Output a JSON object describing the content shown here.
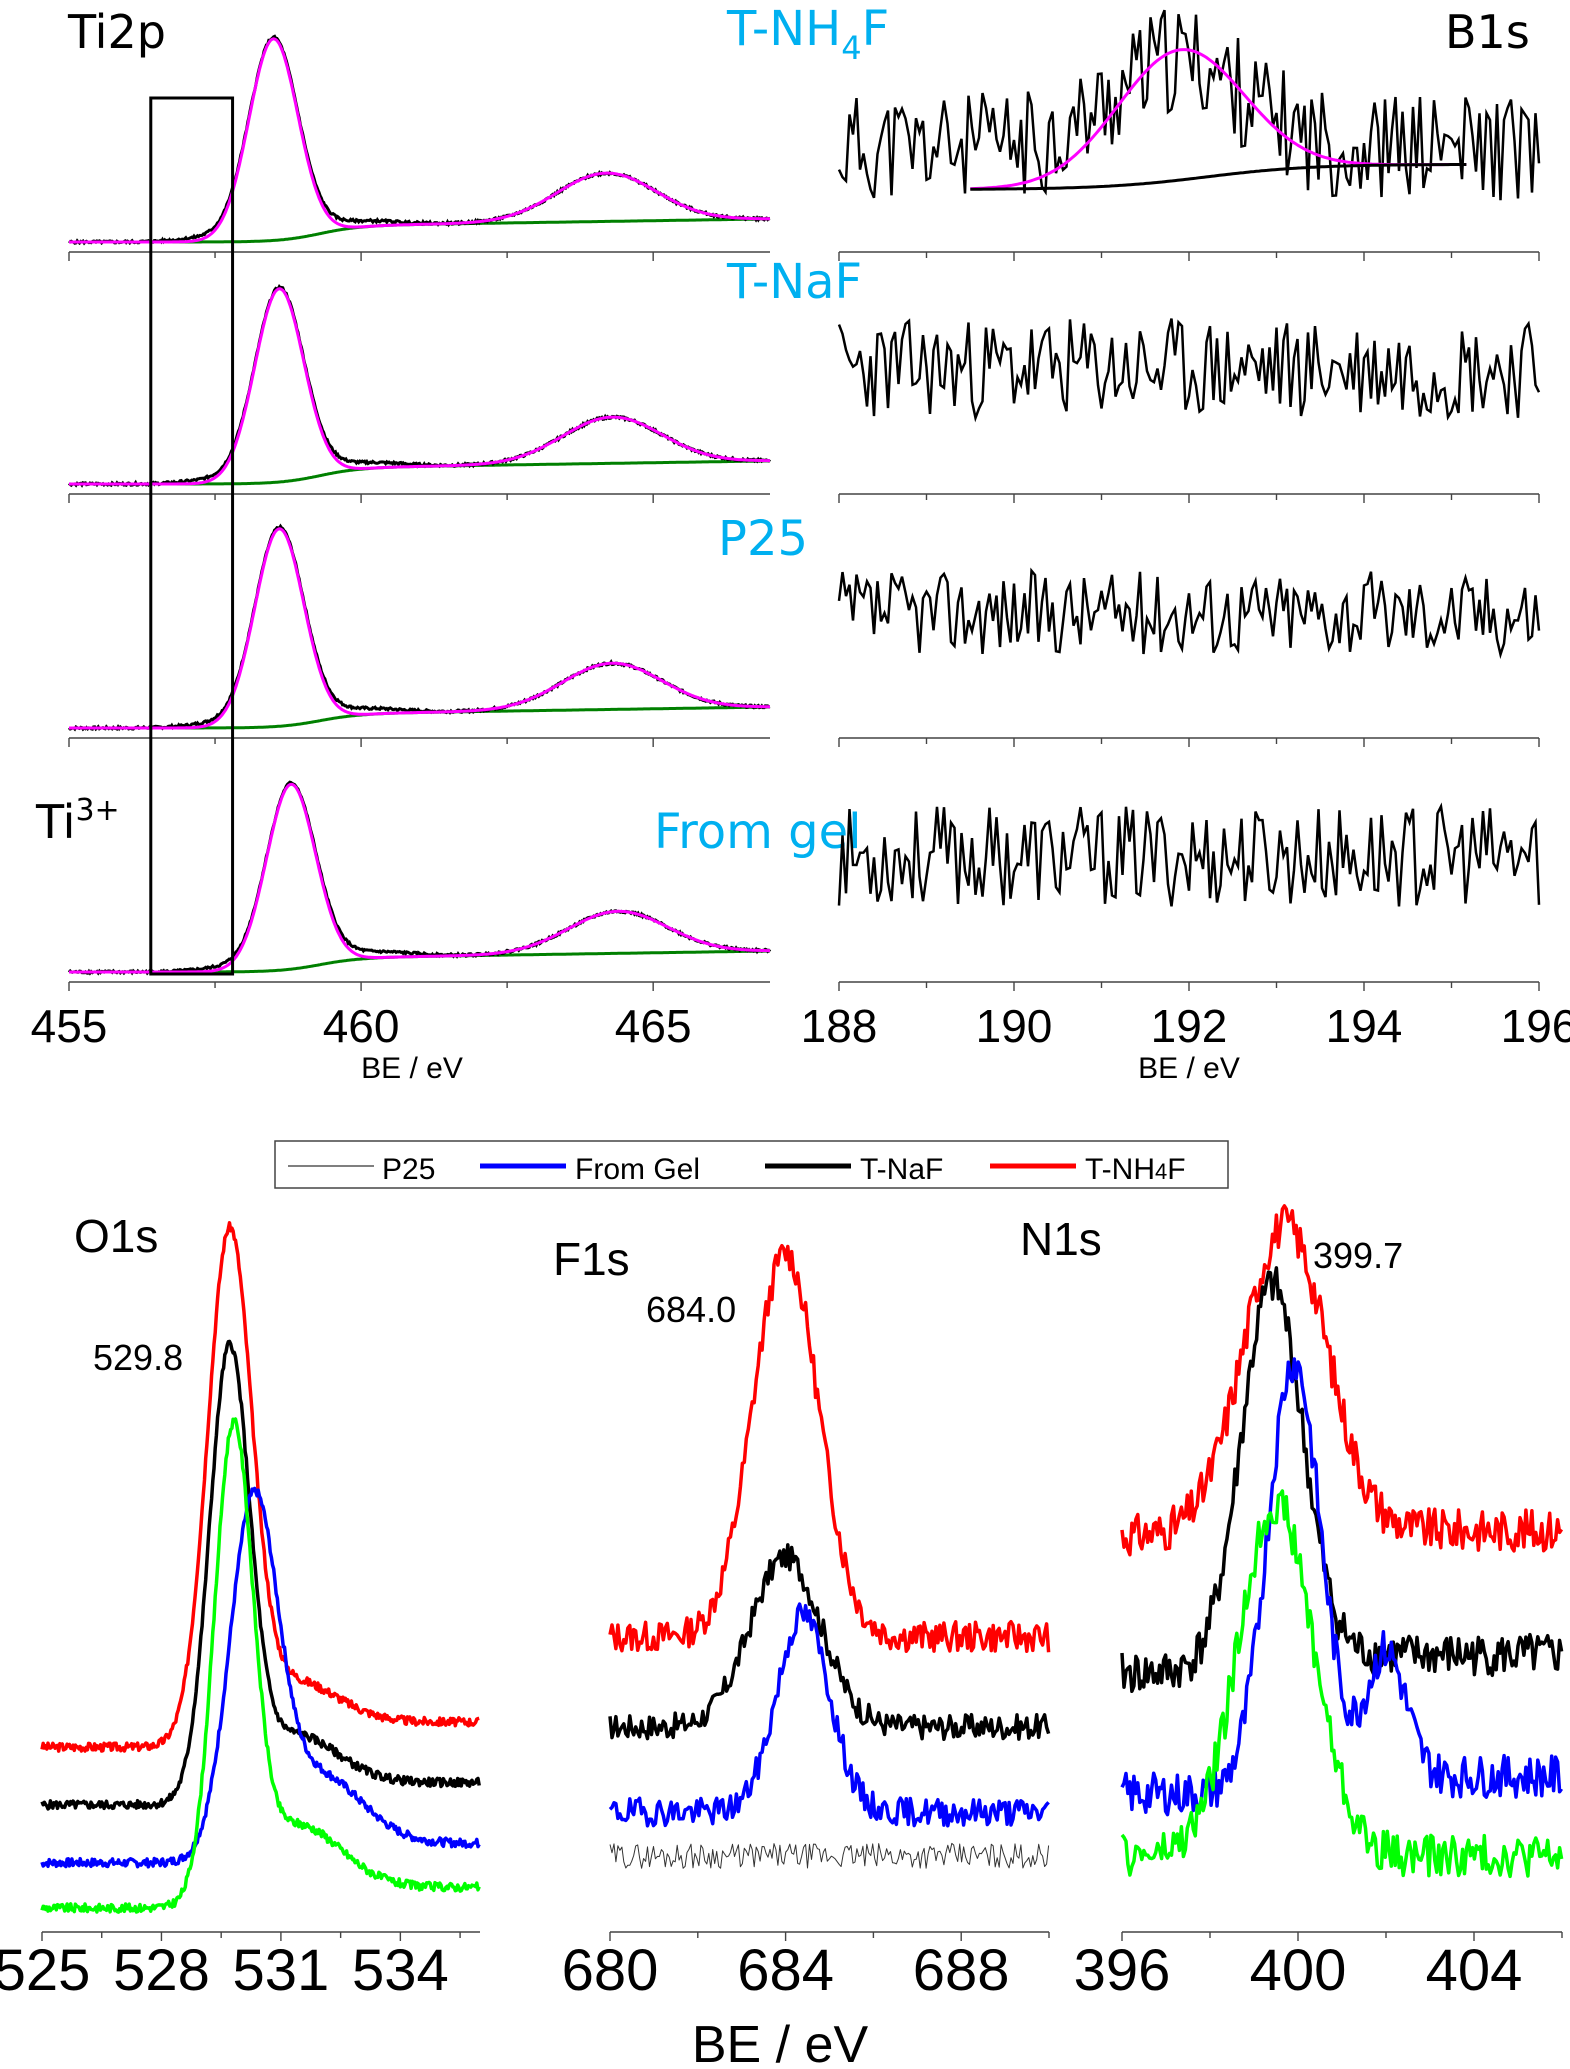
{
  "figure": {
    "label_color": "#00b0f0",
    "fit_color": "#ff00ff",
    "background_color": "#008000",
    "box_color": "#000000"
  },
  "chart_data": [
    {
      "id": "ti2p",
      "type": "line",
      "title": "Ti2p",
      "xlabel": "BE / eV",
      "xlim": [
        455,
        467
      ],
      "xticks": [
        455,
        460,
        465
      ],
      "xminor": 2.5,
      "annotation": {
        "text": "Ti",
        "sup": "3+",
        "region_eV": [
          456.4,
          457.8
        ]
      },
      "panels": [
        {
          "sample": "T-NH",
          "sample_sub": "4",
          "sample_suffix": "F",
          "bg": [
            0.0,
            0.08,
            0.11
          ],
          "p1": {
            "center": 458.5,
            "height": 0.96,
            "sigma": 0.42
          },
          "p2": {
            "center": 464.2,
            "height": 0.23,
            "sigma": 0.85
          }
        },
        {
          "sample": "T-NaF",
          "sample_sub": "",
          "sample_suffix": "",
          "bg": [
            0.0,
            0.08,
            0.11
          ],
          "p1": {
            "center": 458.6,
            "height": 0.92,
            "sigma": 0.42
          },
          "p2": {
            "center": 464.3,
            "height": 0.22,
            "sigma": 0.85
          }
        },
        {
          "sample": "P25",
          "sample_sub": "",
          "sample_suffix": "",
          "bg": [
            0.0,
            0.07,
            0.1
          ],
          "p1": {
            "center": 458.6,
            "height": 0.94,
            "sigma": 0.42
          },
          "p2": {
            "center": 464.3,
            "height": 0.22,
            "sigma": 0.85
          }
        },
        {
          "sample": "From gel",
          "sample_sub": "",
          "sample_suffix": "",
          "bg": [
            0.0,
            0.07,
            0.1
          ],
          "p1": {
            "center": 458.8,
            "height": 0.88,
            "sigma": 0.42
          },
          "p2": {
            "center": 464.4,
            "height": 0.2,
            "sigma": 0.85
          }
        }
      ]
    },
    {
      "id": "b1s",
      "type": "line",
      "title": "B1s",
      "xlabel": "BE / eV",
      "xlim": [
        188,
        196
      ],
      "xticks": [
        188,
        190,
        192,
        194,
        196
      ],
      "xminor": 1,
      "panels": [
        {
          "sample": "T-NH4F",
          "level": 0.45,
          "noise": 0.26,
          "seed": 11,
          "fit": {
            "center": 191.9,
            "height": 0.42,
            "sigma": 0.72,
            "bg_from": 189.5,
            "bg_to": 195.2,
            "bg_left": 0.25,
            "bg_right": 0.37
          }
        },
        {
          "sample": "T-NaF",
          "level": 0.55,
          "noise": 0.24,
          "seed": 23
        },
        {
          "sample": "P25",
          "level": 0.55,
          "noise": 0.2,
          "seed": 37
        },
        {
          "sample": "From gel",
          "level": 0.55,
          "noise": 0.24,
          "seed": 53
        }
      ]
    },
    {
      "id": "o1s",
      "type": "line",
      "title": "O1s",
      "xlim": [
        525,
        536
      ],
      "xticks": [
        525,
        528,
        531,
        534
      ],
      "xminor": 1.5,
      "annotation": "529.8",
      "series": [
        {
          "name": "T-NH4F",
          "color": "#ff0000",
          "base_left": 0.251,
          "base_right": 0.287,
          "center": 529.7,
          "peak": 0.958,
          "sigma": 0.55,
          "tail": 0.06,
          "noise": 0.006,
          "seed": 3
        },
        {
          "name": "T-NaF",
          "color": "#000000",
          "base_left": 0.168,
          "base_right": 0.2,
          "center": 529.7,
          "peak": 0.789,
          "sigma": 0.5,
          "tail": 0.07,
          "noise": 0.006,
          "seed": 5
        },
        {
          "name": "From Gel",
          "color": "#0000ff",
          "base_left": 0.085,
          "base_right": 0.113,
          "center": 530.3,
          "peak": 0.568,
          "sigma": 0.6,
          "tail": 0.1,
          "noise": 0.006,
          "seed": 7
        },
        {
          "name": "P25",
          "color": "#00ff00",
          "base_left": 0.02,
          "base_right": 0.05,
          "center": 529.8,
          "peak": 0.671,
          "sigma": 0.48,
          "tail": 0.09,
          "noise": 0.006,
          "seed": 9
        }
      ]
    },
    {
      "id": "f1s",
      "type": "line",
      "title": "F1s",
      "xlim": [
        680,
        690
      ],
      "xticks": [
        680,
        684,
        688
      ],
      "xminor": 2,
      "annotation": "684.0",
      "series": [
        {
          "name": "T-NH4F",
          "color": "#ff0000",
          "width": 3.5,
          "base_left": 0.409,
          "base_right": 0.409,
          "center": 684.0,
          "peak": 0.96,
          "sigma": 0.75,
          "noise": 0.022,
          "seed": 13
        },
        {
          "name": "T-NaF",
          "color": "#000000",
          "width": 3.5,
          "base_left": 0.28,
          "base_right": 0.28,
          "center": 684.0,
          "peak": 0.524,
          "sigma": 0.8,
          "noise": 0.018,
          "seed": 17
        },
        {
          "name": "From Gel",
          "color": "#0000ff",
          "width": 3.5,
          "base_left": 0.158,
          "base_right": 0.158,
          "center": 684.4,
          "peak": 0.441,
          "sigma": 0.6,
          "noise": 0.02,
          "seed": 19
        },
        {
          "name": "P25",
          "color": "#333333",
          "width": 1,
          "base_left": 0.095,
          "base_right": 0.095,
          "center": 684.0,
          "peak": 0.095,
          "sigma": 0.8,
          "noise": 0.018,
          "seed": 29
        }
      ]
    },
    {
      "id": "n1s",
      "type": "line",
      "title": "N1s",
      "xlim": [
        396,
        406
      ],
      "xticks": [
        396,
        400,
        404
      ],
      "xminor": 2,
      "annotation": "399.7",
      "series": [
        {
          "name": "T-NH4F",
          "color": "#ff0000",
          "base_left": 0.555,
          "base_right": 0.562,
          "center": 399.7,
          "peak": 0.997,
          "sigma": 0.95,
          "noise": 0.03,
          "seed": 31
        },
        {
          "name": "T-NaF",
          "color": "#000000",
          "base_left": 0.357,
          "base_right": 0.383,
          "center": 399.4,
          "peak": 0.901,
          "sigma": 0.7,
          "noise": 0.03,
          "seed": 41
        },
        {
          "name": "From Gel",
          "color": "#0000ff",
          "base_left": 0.184,
          "base_right": 0.209,
          "center": 399.9,
          "peak": 0.792,
          "sigma": 0.6,
          "shoulder": {
            "center": 402.0,
            "height": 0.18,
            "sigma": 0.45
          },
          "noise": 0.03,
          "seed": 43
        },
        {
          "name": "P25",
          "color": "#00ff00",
          "base_left": 0.095,
          "base_right": 0.095,
          "center": 399.5,
          "peak": 0.6,
          "sigma": 0.85,
          "noise": 0.03,
          "seed": 47
        }
      ]
    }
  ],
  "bottom_xlabel": "BE / eV",
  "legend": {
    "items": [
      {
        "label": "P25",
        "label_sub": "",
        "color": "#333333",
        "thin": true
      },
      {
        "label": "From Gel",
        "label_sub": "",
        "color": "#0000ff",
        "thin": false
      },
      {
        "label": "T-NaF",
        "label_sub": "",
        "color": "#000000",
        "thin": false
      },
      {
        "label": "T-NH",
        "label_sub": "4",
        "label_suffix": "F",
        "color": "#ff0000",
        "thin": false
      }
    ]
  }
}
